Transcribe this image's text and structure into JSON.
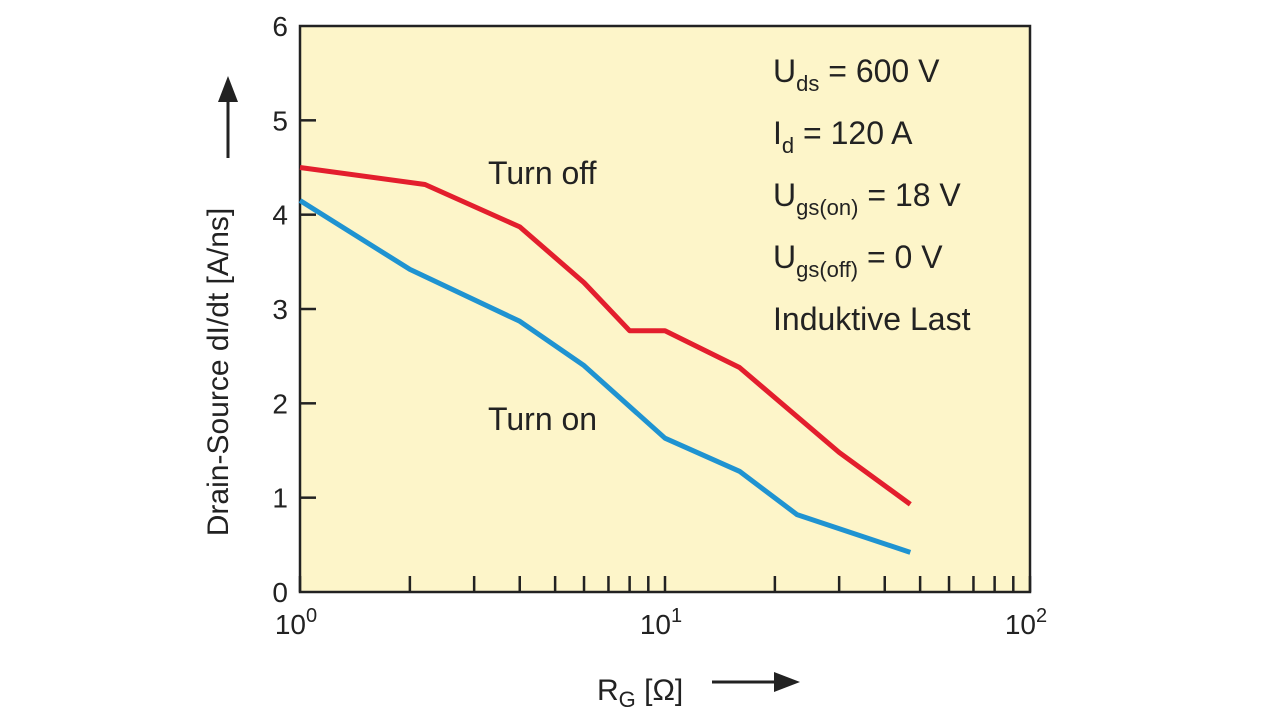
{
  "colors": {
    "plot_background": "#fdf5c9",
    "axis": "#222222",
    "turn_off": "#e31e2d",
    "turn_on": "#1f93d1"
  },
  "icons": {
    "y_arrow": "arrow-up-icon",
    "x_arrow": "arrow-right-icon"
  },
  "chart_data": {
    "type": "line",
    "xscale": "log",
    "xlim": [
      1,
      100
    ],
    "ylim": [
      0,
      6
    ],
    "grid": false,
    "xlabel": {
      "main": "R",
      "sub": "G",
      "rest": " [Ω]"
    },
    "ylabel": "Drain-Source dI/dt [A/ns]",
    "x_ticks": [
      {
        "base": "10",
        "exp": "0",
        "value": 1
      },
      {
        "base": "10",
        "exp": "1",
        "value": 10
      },
      {
        "base": "10",
        "exp": "2",
        "value": 100
      }
    ],
    "y_ticks": [
      "0",
      "1",
      "2",
      "3",
      "4",
      "5",
      "6"
    ],
    "series": [
      {
        "name": "Turn off",
        "color": "#e31e2d",
        "x": [
          1,
          2.2,
          4,
          6,
          8,
          10,
          16,
          30,
          47
        ],
        "y": [
          4.5,
          4.32,
          3.87,
          3.28,
          2.77,
          2.77,
          2.38,
          1.48,
          0.93
        ]
      },
      {
        "name": "Turn on",
        "color": "#1f93d1",
        "x": [
          1,
          2,
          4,
          6,
          10,
          16,
          23,
          47
        ],
        "y": [
          4.15,
          3.42,
          2.87,
          2.4,
          1.63,
          1.28,
          0.82,
          0.42
        ]
      }
    ],
    "annotations": [
      {
        "main": "U",
        "sub": "ds",
        "rest": " = 600 V"
      },
      {
        "main": "I",
        "sub": "d",
        "rest": " = 120 A"
      },
      {
        "main": "U",
        "sub": "gs(on)",
        "rest": " = 18 V"
      },
      {
        "main": "U",
        "sub": "gs(off)",
        "rest": " = 0 V"
      },
      {
        "main": "Induktive Last",
        "sub": "",
        "rest": ""
      }
    ]
  }
}
